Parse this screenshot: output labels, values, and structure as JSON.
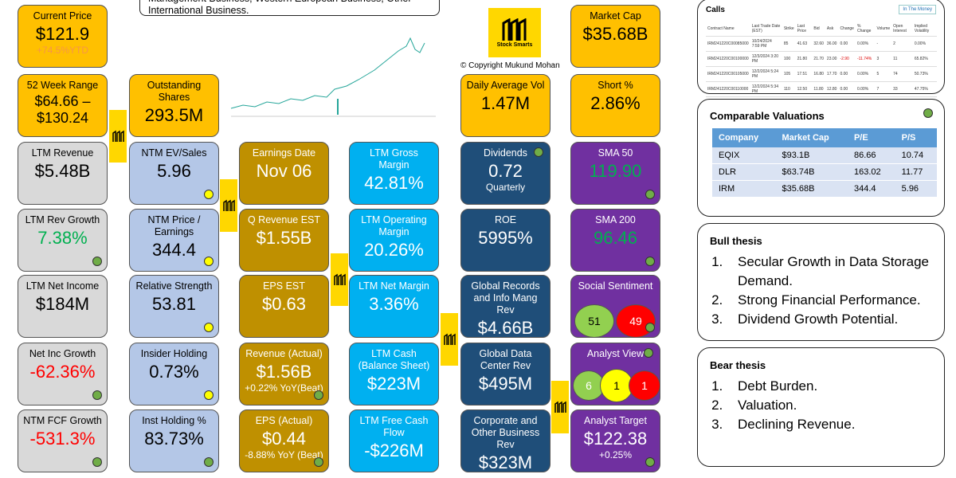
{
  "header_text": "Management Business, Western European Business, Other International Business.",
  "logo": {
    "caption": "Stock Smarts",
    "copyright": "© Copyright Mukund Mohan"
  },
  "tiles": [
    {
      "label": "Current Price",
      "value": "$121.9",
      "note": "+74.5%YTD"
    },
    {
      "label": "52 Week Range",
      "value": "$64.66 – $130.24"
    },
    {
      "label": "Outstanding Shares",
      "value": "293.5M"
    },
    {
      "label": "Market Cap",
      "value": "$35.68B"
    },
    {
      "label": "Daily Average Vol",
      "value": "1.47M"
    },
    {
      "label": "Short %",
      "value": "2.86%"
    },
    {
      "label": "LTM Revenue",
      "value": "$5.48B"
    },
    {
      "label": "LTM Rev Growth",
      "value": "7.38%"
    },
    {
      "label": "LTM Net Income",
      "value": "$184M"
    },
    {
      "label": "Net Inc Growth",
      "value": "-62.36%"
    },
    {
      "label": "NTM FCF Growth",
      "value": "-531.3%"
    },
    {
      "label": "NTM EV/Sales",
      "value": "5.96"
    },
    {
      "label": "NTM Price / Earnings",
      "value": "344.4"
    },
    {
      "label": "Relative Strength",
      "value": "53.81"
    },
    {
      "label": "Insider Holding",
      "value": "0.73%"
    },
    {
      "label": "Inst Holding %",
      "value": "83.73%"
    },
    {
      "label": "Earnings Date",
      "value": "Nov 06"
    },
    {
      "label": "Q Revenue EST",
      "value": "$1.55B"
    },
    {
      "label": "EPS EST",
      "value": "$0.63"
    },
    {
      "label": "Revenue (Actual)",
      "value": "$1.56B",
      "note": "+0.22% YoY(Beat)"
    },
    {
      "label": "EPS (Actual)",
      "value": "$0.44",
      "note": "-8.88% YoY (Beat)"
    },
    {
      "label": "LTM Gross Margin",
      "value": "42.81%"
    },
    {
      "label": "LTM Operating Margin",
      "value": "20.26%"
    },
    {
      "label": "LTM Net Margin",
      "value": "3.36%"
    },
    {
      "label": "LTM Cash (Balance Sheet)",
      "value": "$223M"
    },
    {
      "label": "LTM Free Cash Flow",
      "value": "-$226M"
    },
    {
      "label": "Dividends",
      "value": "0.72",
      "note": "Quarterly"
    },
    {
      "label": "ROE",
      "value": "5995%"
    },
    {
      "label": "Global Records and Info Mang Rev",
      "value": "$4.66B"
    },
    {
      "label": "Global Data Center Rev",
      "value": "$495M"
    },
    {
      "label": "Corporate and Other Business Rev",
      "value": "$323M"
    },
    {
      "label": "SMA 50",
      "value": "119.90"
    },
    {
      "label": "SMA 200",
      "value": "96.46"
    },
    {
      "label": "Social Sentiment",
      "bubbles": [
        "51",
        "49"
      ]
    },
    {
      "label": "Analyst View",
      "bubbles": [
        "6",
        "1",
        "1"
      ]
    },
    {
      "label": "Analyst Target",
      "value": "$122.38",
      "note": "+0.25%"
    }
  ],
  "calls": {
    "title": "Calls",
    "tab": "In The Money",
    "columns": [
      "Contract Name",
      "Last Trade Date (EST)",
      "Strike",
      "Last Price",
      "Bid",
      "Ask",
      "Change",
      "% Change",
      "Volume",
      "Open Interest",
      "Implied Volatility"
    ],
    "rows": [
      [
        "IRM241220C00085000",
        "10/24/2024 7:59 PM",
        "85",
        "41.63",
        "32.60",
        "36.00",
        "0.00",
        "0.00%",
        "-",
        "2",
        "0.00%"
      ],
      [
        "IRM241220C00100000",
        "12/3/2024 3:20 PM",
        "100",
        "21.80",
        "21.70",
        "23.00",
        "-2.90",
        "-11.74%",
        "3",
        "11",
        "65.82%"
      ],
      [
        "IRM241220C00105000",
        "12/2/2024 5:24 PM",
        "105",
        "17.51",
        "16.80",
        "17.70",
        "0.00",
        "0.00%",
        "5",
        "74",
        "50.73%"
      ],
      [
        "IRM241220C00110000",
        "12/2/2024 5:34 PM",
        "110",
        "12.50",
        "11.80",
        "12.80",
        "0.00",
        "0.00%",
        "7",
        "33",
        "47.75%"
      ]
    ]
  },
  "comparables": {
    "title": "Comparable Valuations",
    "columns": [
      "Company",
      "Market Cap",
      "P/E",
      "P/S"
    ],
    "rows": [
      [
        "EQIX",
        "$93.1B",
        "86.66",
        "10.74"
      ],
      [
        "DLR",
        "$63.74B",
        "163.02",
        "11.77"
      ],
      [
        "IRM",
        "$35.68B",
        "344.4",
        "5.96"
      ]
    ]
  },
  "bull": {
    "title": "Bull thesis",
    "items": [
      "Secular Growth in Data Storage Demand.",
      "Strong Financial Performance.",
      "Dividend Growth Potential."
    ]
  },
  "bear": {
    "title": "Bear thesis",
    "items": [
      "Debt Burden.",
      "Valuation.",
      "Declining Revenue."
    ]
  }
}
